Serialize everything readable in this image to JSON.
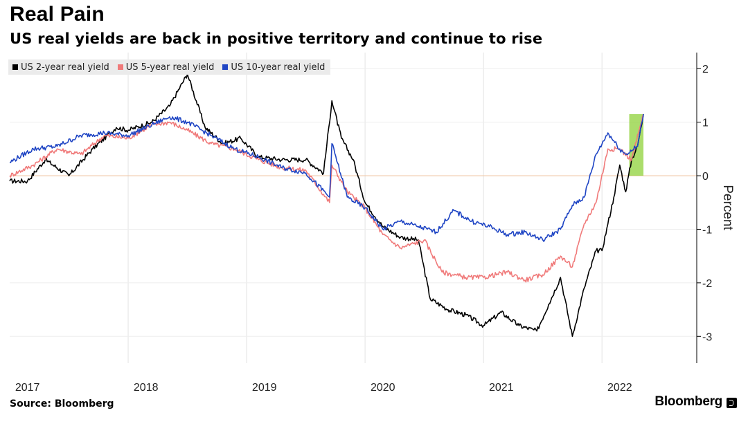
{
  "header": {
    "title": "Real Pain",
    "subtitle": "US real yields are back in positive territory and continue to rise"
  },
  "footer": {
    "source": "Source: Bloomberg",
    "brand": "Bloomberg"
  },
  "chart_data": {
    "type": "line",
    "title": "Real Pain",
    "subtitle": "US real yields are back in positive territory and continue to rise",
    "xlabel": "",
    "ylabel": "Percent",
    "y_axis_side": "right",
    "xlim": [
      2017.0,
      2022.8
    ],
    "ylim": [
      -3.5,
      2.3
    ],
    "y_ticks": [
      2,
      1,
      0,
      -1,
      -2,
      -3
    ],
    "y_tick_labels": [
      "2",
      "1",
      "0",
      "-1",
      "-2",
      "-3"
    ],
    "x_ticks": [
      2017,
      2018,
      2019,
      2020,
      2021,
      2022
    ],
    "x_tick_labels": [
      "2017",
      "2018",
      "2019",
      "2020",
      "2021",
      "2022"
    ],
    "grid": "vertical",
    "legend_position": "top-left",
    "zero_line": true,
    "highlight": {
      "x_range": [
        2022.23,
        2022.35
      ],
      "y_range": [
        0.0,
        1.15
      ],
      "color": "#8fd23a"
    },
    "series": [
      {
        "name": "US 2-year real yield",
        "color": "#000000",
        "x": [
          2017.0,
          2017.15,
          2017.3,
          2017.5,
          2017.7,
          2017.9,
          2018.0,
          2018.2,
          2018.35,
          2018.5,
          2018.65,
          2018.8,
          2018.95,
          2019.1,
          2019.3,
          2019.5,
          2019.65,
          2019.72,
          2019.8,
          2019.9,
          2020.0,
          2020.15,
          2020.3,
          2020.45,
          2020.55,
          2020.7,
          2020.85,
          2021.0,
          2021.15,
          2021.3,
          2021.45,
          2021.55,
          2021.65,
          2021.75,
          2021.85,
          2021.95,
          2022.0,
          2022.05,
          2022.1,
          2022.15,
          2022.2,
          2022.25,
          2022.3,
          2022.35
        ],
        "values": [
          -0.1,
          -0.1,
          0.3,
          0.0,
          0.5,
          0.9,
          0.85,
          1.0,
          1.3,
          1.9,
          0.9,
          0.6,
          0.7,
          0.35,
          0.3,
          0.3,
          0.05,
          1.4,
          0.7,
          0.3,
          -0.5,
          -0.95,
          -1.15,
          -1.2,
          -2.3,
          -2.5,
          -2.6,
          -2.8,
          -2.55,
          -2.8,
          -2.9,
          -2.4,
          -1.9,
          -3.0,
          -2.1,
          -1.4,
          -1.4,
          -0.9,
          -0.4,
          0.2,
          -0.3,
          0.3,
          0.55,
          1.15
        ]
      },
      {
        "name": "US 5-year real yield",
        "color": "#f07a7a",
        "x": [
          2017.0,
          2017.2,
          2017.4,
          2017.6,
          2017.8,
          2018.0,
          2018.2,
          2018.35,
          2018.5,
          2018.7,
          2018.9,
          2019.1,
          2019.3,
          2019.5,
          2019.7,
          2019.72,
          2019.85,
          2020.0,
          2020.15,
          2020.3,
          2020.5,
          2020.65,
          2020.85,
          2021.0,
          2021.2,
          2021.35,
          2021.5,
          2021.65,
          2021.75,
          2021.85,
          2021.95,
          2022.05,
          2022.15,
          2022.25,
          2022.35
        ],
        "values": [
          0.0,
          0.2,
          0.5,
          0.4,
          0.75,
          0.7,
          0.95,
          1.0,
          0.85,
          0.6,
          0.5,
          0.3,
          0.15,
          0.1,
          -0.5,
          0.2,
          -0.3,
          -0.6,
          -1.1,
          -1.35,
          -1.2,
          -1.8,
          -1.9,
          -1.9,
          -1.8,
          -1.95,
          -1.85,
          -1.5,
          -1.7,
          -0.9,
          -0.5,
          0.5,
          0.5,
          0.3,
          1.15
        ]
      },
      {
        "name": "US 10-year real yield",
        "color": "#1f45c4",
        "x": [
          2017.0,
          2017.2,
          2017.4,
          2017.6,
          2017.8,
          2018.0,
          2018.2,
          2018.35,
          2018.5,
          2018.7,
          2018.9,
          2019.1,
          2019.3,
          2019.5,
          2019.7,
          2019.72,
          2019.85,
          2020.0,
          2020.15,
          2020.3,
          2020.45,
          2020.6,
          2020.75,
          2020.9,
          2021.05,
          2021.2,
          2021.35,
          2021.5,
          2021.65,
          2021.75,
          2021.85,
          2021.95,
          2022.05,
          2022.15,
          2022.2,
          2022.3,
          2022.35
        ],
        "values": [
          0.25,
          0.5,
          0.55,
          0.75,
          0.8,
          0.75,
          0.95,
          1.1,
          1.0,
          0.75,
          0.5,
          0.35,
          0.15,
          0.05,
          -0.4,
          0.6,
          -0.4,
          -0.6,
          -1.0,
          -0.85,
          -0.95,
          -1.05,
          -0.65,
          -0.85,
          -0.95,
          -1.1,
          -1.05,
          -1.2,
          -1.0,
          -0.55,
          -0.4,
          0.4,
          0.8,
          0.5,
          0.4,
          0.55,
          1.15
        ]
      }
    ]
  }
}
